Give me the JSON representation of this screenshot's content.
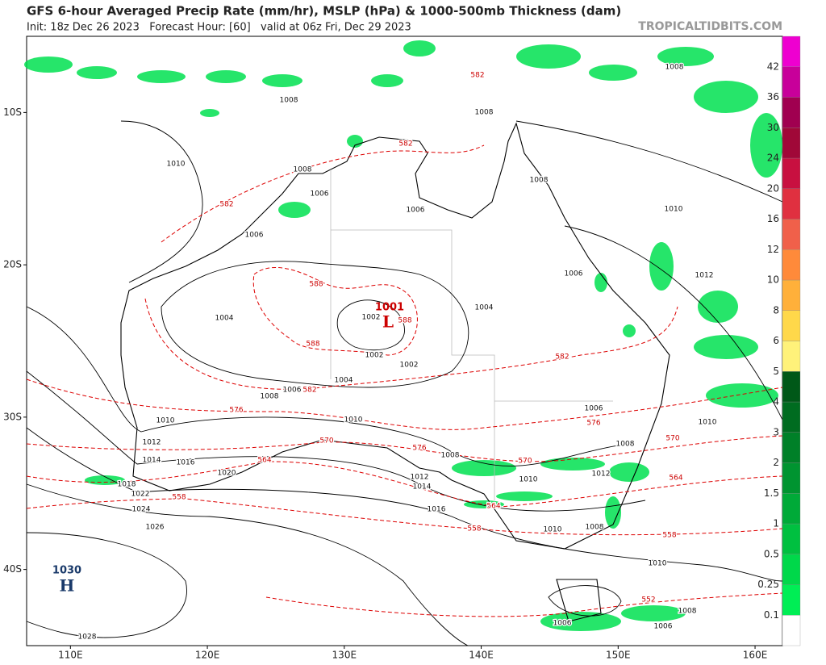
{
  "header": {
    "title": "GFS 6-hour Averaged Precip Rate (mm/hr), MSLP (hPa) & 1000-500mb Thickness (dam)",
    "subtitle": "Init: 18z Dec 26 2023   Forecast Hour: [60]   valid at 06z Fri, Dec 29 2023",
    "watermark": "TROPICALTIDBITS.COM"
  },
  "map": {
    "lonlim": [
      106.8,
      162
    ],
    "latlim": [
      -5,
      -45
    ],
    "xticks": [
      {
        "value": 110,
        "label": "110E"
      },
      {
        "value": 120,
        "label": "120E"
      },
      {
        "value": 130,
        "label": "130E"
      },
      {
        "value": 140,
        "label": "140E"
      },
      {
        "value": 150,
        "label": "150E"
      },
      {
        "value": 160,
        "label": "160E"
      }
    ],
    "yticks": [
      {
        "value": -10,
        "label": "10S"
      },
      {
        "value": -20,
        "label": "20S"
      },
      {
        "value": -30,
        "label": "30S"
      },
      {
        "value": -40,
        "label": "40S"
      }
    ],
    "high": {
      "value": "1030",
      "symbol": "H"
    },
    "low": {
      "value": "1001",
      "symbol": "L"
    },
    "isobar_labels": [
      1008,
      1008,
      1008,
      1010,
      1008,
      1006,
      1008,
      1006,
      1010,
      1006,
      1006,
      1012,
      1004,
      1004,
      1002,
      1002,
      1002,
      1004,
      1006,
      1008,
      1010,
      1010,
      1006,
      1010,
      1012,
      1008,
      1014,
      1016,
      1008,
      1012,
      1014,
      1012,
      1010,
      1018,
      1020,
      1022,
      1024,
      1016,
      1026,
      1010,
      1008,
      1010,
      1008,
      1006,
      1006,
      1028
    ],
    "thickness_labels": [
      582,
      582,
      582,
      588,
      588,
      588,
      582,
      582,
      576,
      576,
      570,
      576,
      570,
      570,
      564,
      564,
      564,
      558,
      558,
      558,
      552
    ]
  },
  "colorbar": {
    "labels": [
      0.1,
      0.25,
      0.5,
      1,
      1.5,
      2,
      3,
      4,
      5,
      6,
      8,
      10,
      12,
      16,
      20,
      24,
      30,
      36,
      42
    ],
    "colors": [
      "#ffffff",
      "#00ee55",
      "#00d84a",
      "#00c040",
      "#00aa38",
      "#009430",
      "#008028",
      "#006c20",
      "#005818",
      "#fff27a",
      "#ffd84a",
      "#ffb03a",
      "#ff8a3a",
      "#f0604a",
      "#e03040",
      "#c81040",
      "#a00838",
      "#a00050",
      "#c8009a",
      "#ee00d0"
    ]
  }
}
